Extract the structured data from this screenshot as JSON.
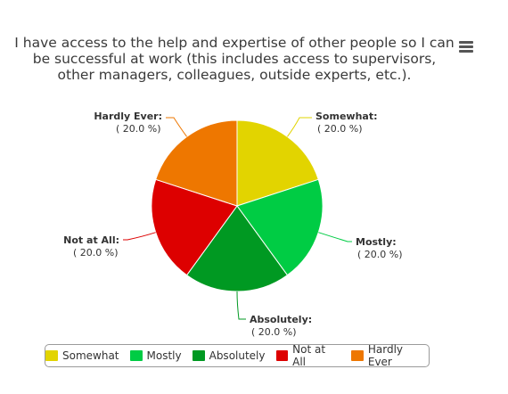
{
  "title_lines": [
    "I have access to the help and expertise of other people so I can",
    "be successful at work (this includes access to supervisors,",
    "other managers, colleagues, outside experts, etc.)."
  ],
  "menu_icon": "hamburger-menu-icon",
  "chart_data": {
    "type": "pie",
    "title": "I have access to the help and expertise of other people so I can be successful at work (this includes access to supervisors, other managers, colleagues, outside experts, etc.).",
    "legend_placement": "bottom",
    "slices": [
      {
        "name": "Somewhat",
        "value": 20.0,
        "pct_label": "( 20.0 %)",
        "color": "#e2d400"
      },
      {
        "name": "Mostly",
        "value": 20.0,
        "pct_label": "( 20.0 %)",
        "color": "#00cc44"
      },
      {
        "name": "Absolutely",
        "value": 20.0,
        "pct_label": "( 20.0 %)",
        "color": "#009922"
      },
      {
        "name": "Not at All",
        "value": 20.0,
        "pct_label": "( 20.0 %)",
        "color": "#dd0000"
      },
      {
        "name": "Hardly Ever",
        "value": 20.0,
        "pct_label": "( 20.0 %)",
        "color": "#ee7700"
      }
    ]
  }
}
